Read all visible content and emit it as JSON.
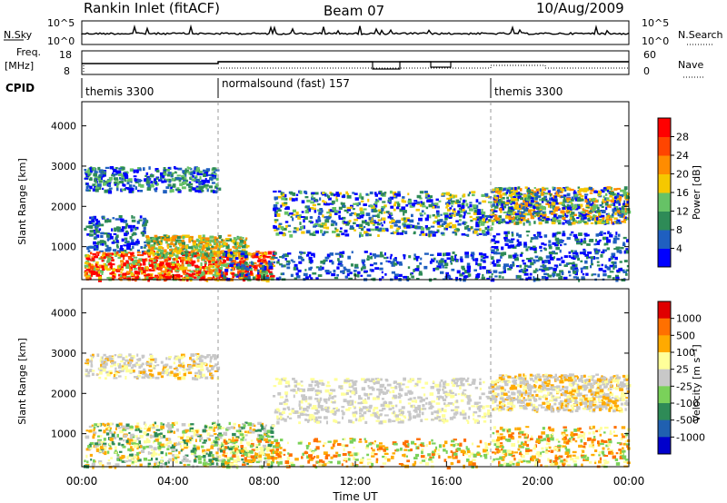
{
  "header": {
    "station": "Rankin Inlet (fitACF)",
    "beam": "Beam 07",
    "date": "10/Aug/2009"
  },
  "noise_panel": {
    "left_label": "N.Sky",
    "left_ticks": [
      "10^5",
      "10^0"
    ],
    "right_label": "N.Search",
    "right_ticks": [
      "10^5",
      "10^0"
    ]
  },
  "freq_panel": {
    "left_label_1": "Freq.",
    "left_label_2": "[MHz]",
    "left_ticks": [
      "18",
      "8"
    ],
    "right_label": "Nave",
    "right_ticks": [
      "60",
      "0"
    ]
  },
  "cpid": {
    "label": "CPID",
    "segments": [
      "themis 3300",
      "normalsound (fast) 157",
      "themis 3300"
    ]
  },
  "x_axis": {
    "label": "Time UT",
    "ticks": [
      "00:00",
      "04:00",
      "08:00",
      "12:00",
      "16:00",
      "20:00",
      "00:00"
    ]
  },
  "colors": {
    "power": [
      "#0000ff",
      "#1f5fc0",
      "#2e8b57",
      "#66c266",
      "#f5c800",
      "#ff8c00",
      "#ff4500",
      "#ff0000"
    ],
    "velocity": [
      "#e00000",
      "#ff7000",
      "#ffaa00",
      "#ffff99",
      "#c8c8c8",
      "#7ad15a",
      "#2e8b57",
      "#2060b0",
      "#0000cc"
    ]
  },
  "chart_data": [
    {
      "type": "heatmap",
      "panel": "power",
      "ylabel": "Slant Range [km]",
      "xlabel": "Time UT",
      "y_ticks": [
        "1000",
        "2000",
        "3000",
        "4000"
      ],
      "ylim": [
        180,
        4600
      ],
      "colorbar_label": "Power [dB]",
      "colorbar_ticks": [
        "4",
        "8",
        "12",
        "16",
        "20",
        "24",
        "28"
      ]
    },
    {
      "type": "heatmap",
      "panel": "velocity",
      "ylabel": "Slant Range [km]",
      "xlabel": "Time UT",
      "y_ticks": [
        "1000",
        "2000",
        "3000",
        "4000"
      ],
      "ylim": [
        180,
        4600
      ],
      "colorbar_label": "Velocity [m s⁻¹]",
      "colorbar_ticks": [
        "1000",
        "500",
        "100",
        "25",
        "-25",
        "-100",
        "-500",
        "-1000"
      ]
    }
  ]
}
